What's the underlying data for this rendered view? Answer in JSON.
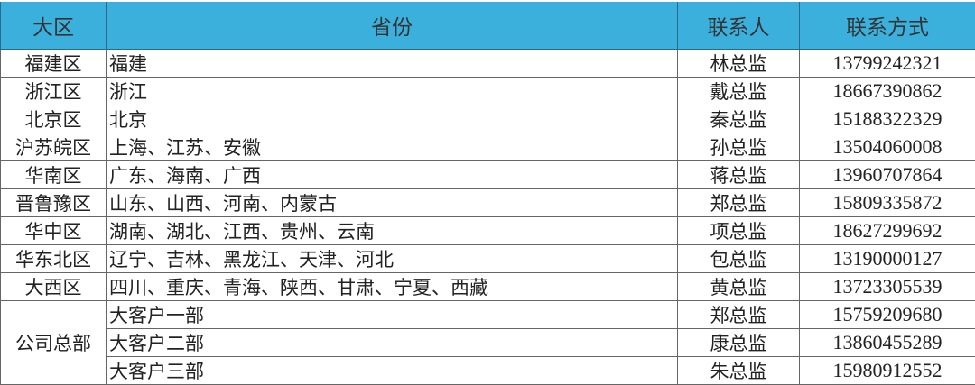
{
  "headers": [
    "大区",
    "省份",
    "联系人",
    "联系方式"
  ],
  "header_color": "#3bb0dd",
  "rows": [
    {
      "region": "福建区",
      "provinces": "福建",
      "contact": "林总监",
      "phone": "13799242321"
    },
    {
      "region": "浙江区",
      "provinces": "浙江",
      "contact": "戴总监",
      "phone": "18667390862"
    },
    {
      "region": "北京区",
      "provinces": "北京",
      "contact": "秦总监",
      "phone": "15188322329"
    },
    {
      "region": "沪苏皖区",
      "provinces": "上海、江苏、安徽",
      "contact": "孙总监",
      "phone": "13504060008"
    },
    {
      "region": "华南区",
      "provinces": "广东、海南、广西",
      "contact": "蒋总监",
      "phone": "13960707864"
    },
    {
      "region": "晋鲁豫区",
      "provinces": "山东、山西、河南、内蒙古",
      "contact": "郑总监",
      "phone": "15809335872"
    },
    {
      "region": "华中区",
      "provinces": "湖南、湖北、江西、贵州、云南",
      "contact": "项总监",
      "phone": "18627299692"
    },
    {
      "region": "华东北区",
      "provinces": "辽宁、吉林、黑龙江、天津、河北",
      "contact": "包总监",
      "phone": "13190000127"
    },
    {
      "region": "大西区",
      "provinces": "四川、重庆、青海、陕西、甘肃、宁夏、西藏",
      "contact": "黄总监",
      "phone": "13723305539"
    }
  ],
  "hq": {
    "region": "公司总部",
    "rows": [
      {
        "provinces": "大客户一部",
        "contact": "郑总监",
        "phone": "15759209680"
      },
      {
        "provinces": "大客户二部",
        "contact": "康总监",
        "phone": "13860455289"
      },
      {
        "provinces": "大客户三部",
        "contact": "朱总监",
        "phone": "15980912552"
      }
    ]
  }
}
